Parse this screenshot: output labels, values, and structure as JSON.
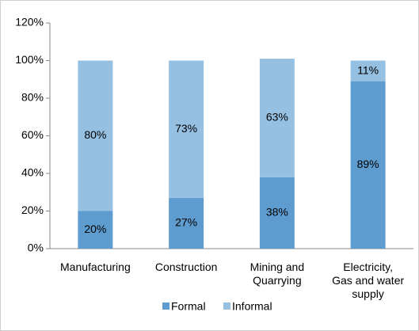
{
  "chart_data": {
    "type": "stacked_bar",
    "categories": [
      "Manufacturing",
      "Construction",
      "Mining and Quarrying",
      "Electricity, Gas and water supply"
    ],
    "series": [
      {
        "name": "Formal",
        "color": "#5e9cd0",
        "values": [
          20,
          27,
          38,
          89
        ],
        "value_labels": [
          "20%",
          "27%",
          "38%",
          "89%"
        ]
      },
      {
        "name": "Informal",
        "color": "#95c0e2",
        "values": [
          80,
          73,
          63,
          11
        ],
        "value_labels": [
          "80%",
          "73%",
          "63%",
          "11%"
        ]
      }
    ],
    "ylim": [
      0,
      120
    ],
    "yticks": [
      {
        "value": 0,
        "label": "0%"
      },
      {
        "value": 20,
        "label": "20%"
      },
      {
        "value": 40,
        "label": "40%"
      },
      {
        "value": 60,
        "label": "60%"
      },
      {
        "value": 80,
        "label": "80%"
      },
      {
        "value": 100,
        "label": "100%"
      },
      {
        "value": 120,
        "label": "120%"
      }
    ],
    "legend": "bottom"
  }
}
